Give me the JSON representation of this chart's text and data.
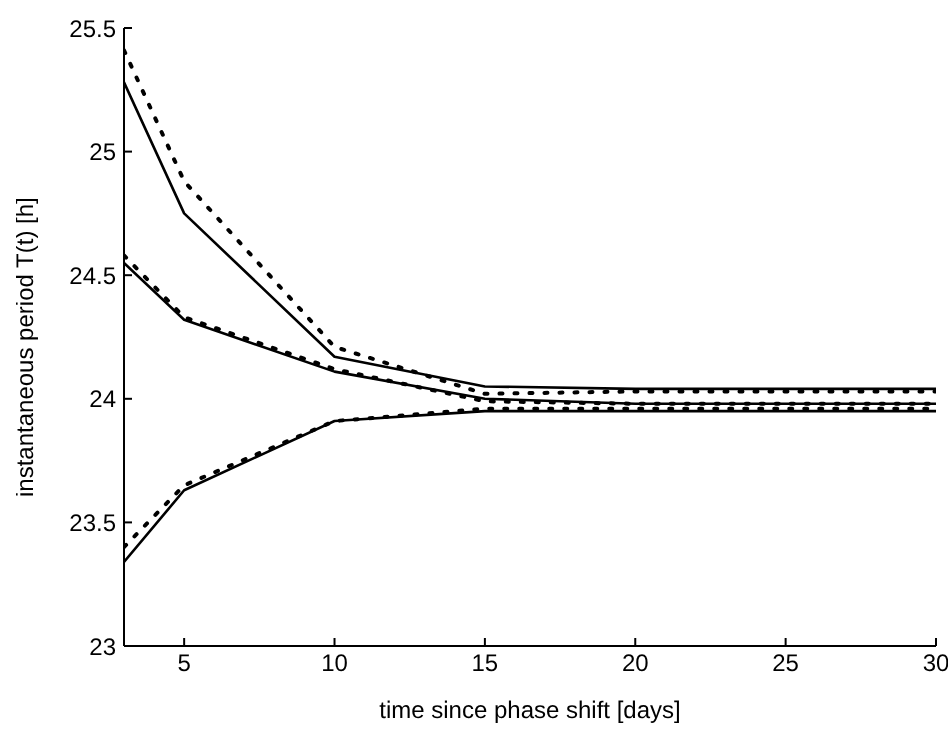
{
  "chart_data": {
    "type": "line",
    "xlabel": "time since phase shift [days]",
    "ylabel": "instantaneous period T(t) [h]",
    "xlim": [
      3,
      30
    ],
    "ylim": [
      23,
      25.5
    ],
    "xticks": [
      5,
      10,
      15,
      20,
      25,
      30
    ],
    "yticks": [
      23,
      23.5,
      24,
      24.5,
      25,
      25.5
    ],
    "x": [
      3,
      5,
      10,
      15,
      20,
      25,
      30
    ],
    "series": [
      {
        "color": "#000000",
        "line_style": "solid",
        "values": [
          25.28,
          24.75,
          24.17,
          24.05,
          24.04,
          24.04,
          24.04
        ]
      },
      {
        "color": "#000000",
        "line_style": "dotted",
        "values": [
          25.41,
          24.88,
          24.21,
          24.02,
          24.03,
          24.03,
          24.03
        ]
      },
      {
        "color": "#000000",
        "line_style": "solid",
        "values": [
          24.55,
          24.32,
          24.11,
          24.0,
          23.98,
          23.98,
          23.98
        ]
      },
      {
        "color": "#000000",
        "line_style": "dotted",
        "values": [
          24.58,
          24.33,
          24.12,
          23.99,
          23.98,
          23.98,
          23.98
        ]
      },
      {
        "color": "#000000",
        "line_style": "solid",
        "values": [
          23.34,
          23.63,
          23.91,
          23.95,
          23.95,
          23.95,
          23.95
        ]
      },
      {
        "color": "#000000",
        "line_style": "dotted",
        "values": [
          23.4,
          23.65,
          23.91,
          23.96,
          23.96,
          23.96,
          23.96
        ]
      }
    ]
  }
}
